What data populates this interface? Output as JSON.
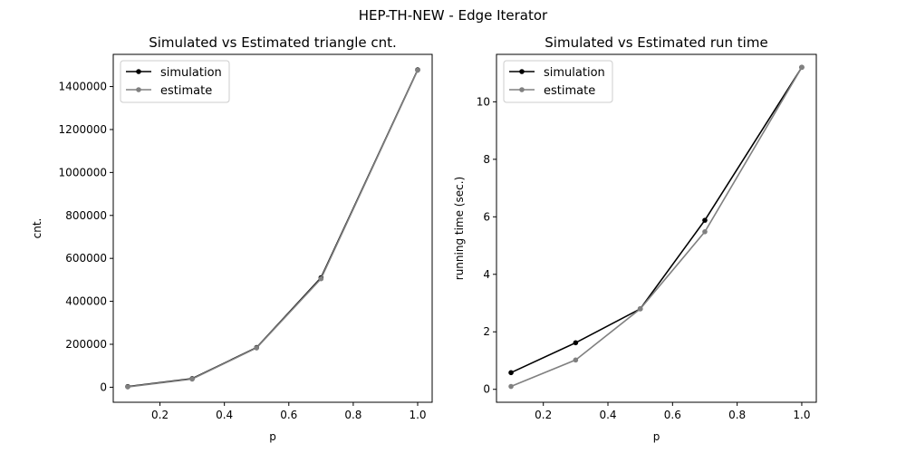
{
  "figure": {
    "suptitle": "HEP-TH-NEW - Edge Iterator"
  },
  "chart_data": [
    {
      "type": "line",
      "title": "Simulated vs Estimated triangle cnt.",
      "xlabel": "p",
      "ylabel": "cnt.",
      "xlim": [
        0.055,
        1.045
      ],
      "ylim": [
        -70000,
        1550000
      ],
      "x_ticks": [
        0.2,
        0.4,
        0.6,
        0.8,
        1.0
      ],
      "x_tick_labels": [
        "0.2",
        "0.4",
        "0.6",
        "0.8",
        "1.0"
      ],
      "y_ticks": [
        0,
        200000,
        400000,
        600000,
        800000,
        1000000,
        1200000,
        1400000
      ],
      "y_tick_labels": [
        "0",
        "200000",
        "400000",
        "600000",
        "800000",
        "1000000",
        "1200000",
        "1400000"
      ],
      "legend_position": "top-left",
      "grid": false,
      "series": [
        {
          "name": "simulation",
          "color": "#000000",
          "x": [
            0.1,
            0.3,
            0.5,
            0.7,
            1.0
          ],
          "y": [
            3000,
            40000,
            185000,
            510000,
            1478000
          ]
        },
        {
          "name": "estimate",
          "color": "#808080",
          "x": [
            0.1,
            0.3,
            0.5,
            0.7,
            1.0
          ],
          "y": [
            1500,
            38000,
            183000,
            505000,
            1476000
          ]
        }
      ]
    },
    {
      "type": "line",
      "title": "Simulated vs Estimated run time",
      "xlabel": "p",
      "ylabel": "running time (sec.)",
      "xlim": [
        0.055,
        1.045
      ],
      "ylim": [
        -0.45,
        11.65
      ],
      "x_ticks": [
        0.2,
        0.4,
        0.6,
        0.8,
        1.0
      ],
      "x_tick_labels": [
        "0.2",
        "0.4",
        "0.6",
        "0.8",
        "1.0"
      ],
      "y_ticks": [
        0,
        2,
        4,
        6,
        8,
        10
      ],
      "y_tick_labels": [
        "0",
        "2",
        "4",
        "6",
        "8",
        "10"
      ],
      "legend_position": "top-left",
      "grid": false,
      "series": [
        {
          "name": "simulation",
          "color": "#000000",
          "x": [
            0.1,
            0.3,
            0.5,
            0.7,
            1.0
          ],
          "y": [
            0.58,
            1.62,
            2.8,
            5.88,
            11.2
          ]
        },
        {
          "name": "estimate",
          "color": "#808080",
          "x": [
            0.1,
            0.3,
            0.5,
            0.7,
            1.0
          ],
          "y": [
            0.1,
            1.02,
            2.8,
            5.48,
            11.2
          ]
        }
      ]
    }
  ]
}
